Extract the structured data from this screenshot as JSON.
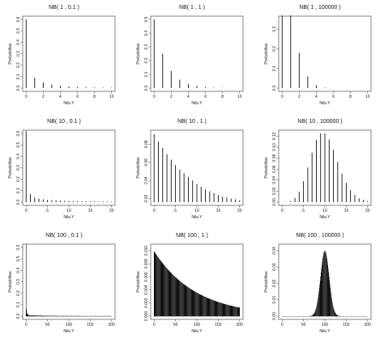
{
  "chart_data": [
    {
      "type": "bar",
      "title": "NB( 1 , 0.1 )",
      "xlabel": "Nila Y",
      "ylabel": "Probabilitas",
      "xlim": [
        0,
        10
      ],
      "ylim": [
        0,
        0.6
      ],
      "xticks": [
        0,
        2,
        4,
        6,
        8,
        10
      ],
      "yticks": [
        0.0,
        0.1,
        0.2,
        0.3,
        0.4,
        0.5,
        0.6
      ],
      "x": [
        0,
        1,
        2,
        3,
        4,
        5,
        6,
        7,
        8,
        9,
        10
      ],
      "values": [
        0.6,
        0.09,
        0.05,
        0.03,
        0.02,
        0.015,
        0.01,
        0.008,
        0.006,
        0.005,
        0.004
      ]
    },
    {
      "type": "bar",
      "title": "NB( 1 , 1 )",
      "xlabel": "Nila Y",
      "ylabel": "Probabilitas",
      "xlim": [
        0,
        10
      ],
      "ylim": [
        0,
        0.5
      ],
      "xticks": [
        0,
        2,
        4,
        6,
        8,
        10
      ],
      "yticks": [
        0.0,
        0.1,
        0.2,
        0.3,
        0.4,
        0.5
      ],
      "x": [
        0,
        1,
        2,
        3,
        4,
        5,
        6,
        7,
        8,
        9,
        10
      ],
      "values": [
        0.5,
        0.25,
        0.125,
        0.0625,
        0.031,
        0.016,
        0.008,
        0.004,
        0.002,
        0.001,
        0.0005
      ]
    },
    {
      "type": "bar",
      "title": "NB( 1 , 100000 )",
      "xlabel": "Nila Y",
      "ylabel": "Probabilitas",
      "xlim": [
        0,
        10
      ],
      "ylim": [
        0,
        0.35
      ],
      "xticks": [
        0,
        2,
        4,
        6,
        8,
        10
      ],
      "yticks": [
        0.0,
        0.1,
        0.2,
        0.3
      ],
      "x": [
        0,
        1,
        2,
        3,
        4,
        5,
        6,
        7,
        8,
        9,
        10
      ],
      "values": [
        0.37,
        0.37,
        0.18,
        0.06,
        0.015,
        0.003,
        0.0005,
        0,
        0,
        0,
        0
      ]
    },
    {
      "type": "bar",
      "title": "NB( 10 , 0.1 )",
      "xlabel": "Nila Y",
      "ylabel": "Probabilitas",
      "xlim": [
        0,
        20
      ],
      "ylim": [
        0,
        0.6
      ],
      "xticks": [
        0,
        5,
        10,
        15,
        20
      ],
      "yticks": [
        0.0,
        0.1,
        0.2,
        0.3,
        0.4,
        0.5,
        0.6
      ],
      "x": [
        0,
        1,
        2,
        3,
        4,
        5,
        6,
        7,
        8,
        9,
        10,
        11,
        12,
        13,
        14,
        15,
        16,
        17,
        18,
        19,
        20
      ],
      "values": [
        0.62,
        0.07,
        0.04,
        0.03,
        0.025,
        0.02,
        0.018,
        0.016,
        0.014,
        0.012,
        0.011,
        0.01,
        0.009,
        0.008,
        0.008,
        0.007,
        0.007,
        0.006,
        0.006,
        0.005,
        0.005
      ]
    },
    {
      "type": "bar",
      "title": "NB( 10 , 1 )",
      "xlabel": "Nila Y",
      "ylabel": "Probabilitas",
      "xlim": [
        0,
        20
      ],
      "ylim": [
        0.016,
        0.092
      ],
      "xticks": [
        0,
        5,
        10,
        15,
        20
      ],
      "yticks": [
        0.02,
        0.04,
        0.06,
        0.08
      ],
      "x": [
        0,
        1,
        2,
        3,
        4,
        5,
        6,
        7,
        8,
        9,
        10,
        11,
        12,
        13,
        14,
        15,
        16,
        17,
        18,
        19,
        20
      ],
      "values": [
        0.091,
        0.083,
        0.076,
        0.069,
        0.063,
        0.057,
        0.052,
        0.048,
        0.044,
        0.04,
        0.036,
        0.033,
        0.03,
        0.028,
        0.026,
        0.024,
        0.022,
        0.021,
        0.02,
        0.019,
        0.018
      ]
    },
    {
      "type": "bar",
      "title": "NB( 10 , 100000 )",
      "xlabel": "Nila Y",
      "ylabel": "Probabilitas",
      "xlim": [
        0,
        20
      ],
      "ylim": [
        0,
        0.125
      ],
      "xticks": [
        0,
        5,
        10,
        15,
        20
      ],
      "yticks": [
        0.0,
        0.02,
        0.04,
        0.06,
        0.08,
        0.1,
        0.12
      ],
      "x": [
        0,
        1,
        2,
        3,
        4,
        5,
        6,
        7,
        8,
        9,
        10,
        11,
        12,
        13,
        14,
        15,
        16,
        17,
        18,
        19,
        20
      ],
      "values": [
        0.0,
        0.0005,
        0.002,
        0.0076,
        0.019,
        0.038,
        0.063,
        0.09,
        0.113,
        0.125,
        0.125,
        0.114,
        0.095,
        0.073,
        0.052,
        0.035,
        0.022,
        0.013,
        0.007,
        0.004,
        0.002
      ]
    },
    {
      "type": "bar",
      "title": "NB( 100 , 0.1 )",
      "xlabel": "Nila Y",
      "ylabel": "Probabilitas",
      "xlim": [
        0,
        200
      ],
      "ylim": [
        0,
        0.6
      ],
      "xticks": [
        0,
        50,
        100,
        150,
        200
      ],
      "yticks": [
        0.0,
        0.1,
        0.2,
        0.3,
        0.4,
        0.5,
        0.6
      ],
      "x_range": [
        0,
        200
      ],
      "values_description_only": "",
      "values": [
        0.63,
        0.06,
        0.03,
        0.02,
        0.015,
        0.012,
        0.01,
        0.009,
        0.008,
        0.007
      ]
    },
    {
      "type": "bar",
      "title": "NB( 100 , 1 )",
      "xlabel": "Nila Y",
      "ylabel": "Probabilitas",
      "xlim": [
        0,
        200
      ],
      "ylim": [
        0,
        0.0105
      ],
      "xticks": [
        0,
        50,
        100,
        150,
        200
      ],
      "yticks": [
        0.0,
        0.002,
        0.004,
        0.006,
        0.008,
        0.01
      ],
      "x_range": [
        0,
        200
      ],
      "start_value": 0.0099,
      "end_value": 0.0013
    },
    {
      "type": "bar",
      "title": "NB( 100 , 100000 )",
      "xlabel": "Nila Y",
      "ylabel": "Probabilitas",
      "xlim": [
        0,
        200
      ],
      "ylim": [
        0,
        0.042
      ],
      "xticks": [
        0,
        50,
        100,
        150,
        200
      ],
      "yticks": [
        0.0,
        0.01,
        0.02,
        0.03,
        0.04
      ],
      "x_range": [
        0,
        200
      ],
      "peak_x": 100,
      "peak_value": 0.0399,
      "sd": 10
    }
  ]
}
